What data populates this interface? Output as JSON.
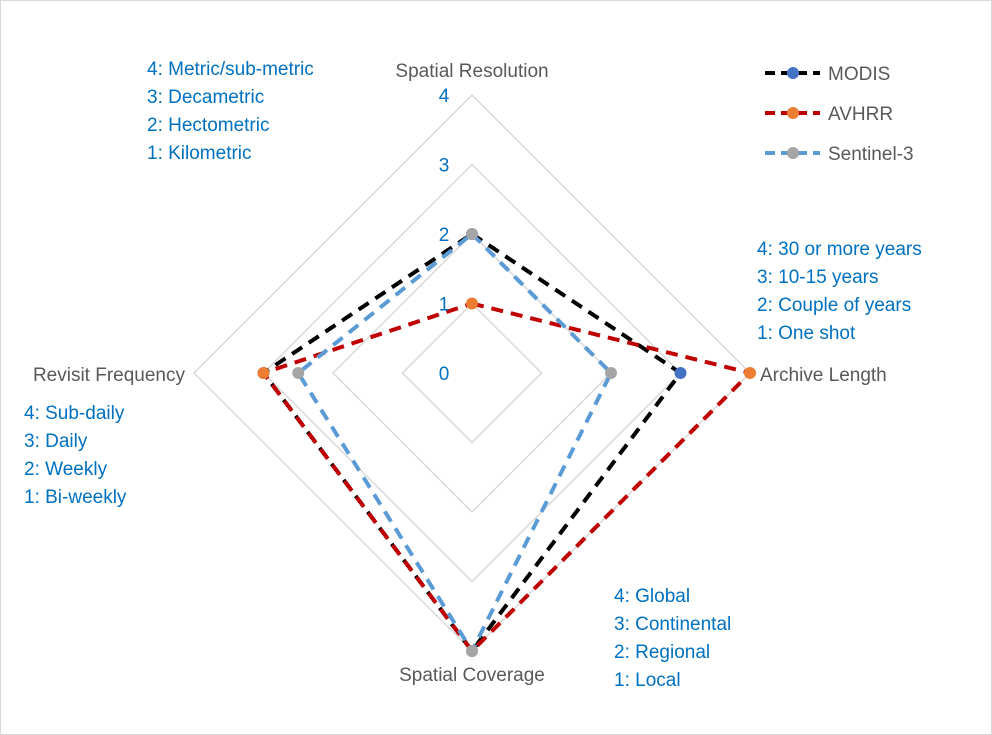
{
  "chart_data": {
    "type": "radar",
    "axes": [
      "Spatial Resolution",
      "Archive Length",
      "Spatial Coverage",
      "Revisit Frequency"
    ],
    "rlim": [
      0,
      4
    ],
    "ticks": [
      "0",
      "1",
      "2",
      "3",
      "4"
    ],
    "grid": true,
    "legend_position": "top-right",
    "series": [
      {
        "name": "MODIS",
        "values": [
          2,
          3,
          4,
          3
        ],
        "line_color": "#000000",
        "marker_color": "#4472c4",
        "dash": "dashed"
      },
      {
        "name": "AVHRR",
        "values": [
          1,
          4,
          4,
          3
        ],
        "line_color": "#c00000",
        "marker_color": "#ed7d31",
        "dash": "dashed"
      },
      {
        "name": "Sentinel-3",
        "values": [
          2,
          2,
          4,
          2.5
        ],
        "line_color": "#5b9bd5",
        "marker_color": "#a5a5a5",
        "dash": "dashed"
      }
    ],
    "annotations": {
      "spatial_resolution": [
        "4: Metric/sub-metric",
        "3: Decametric",
        "2: Hectometric",
        "1: Kilometric"
      ],
      "archive_length": [
        "4: 30 or more years",
        "3: 10-15 years",
        "2: Couple of years",
        "1: One shot"
      ],
      "revisit_frequency": [
        "4: Sub-daily",
        "3: Daily",
        "2: Weekly",
        "1: Bi-weekly"
      ],
      "spatial_coverage": [
        "4: Global",
        "3: Continental",
        "2: Regional",
        "1: Local"
      ]
    },
    "colors": {
      "grid": "#d9d9d9",
      "axis_text": "#595959",
      "annotation_text": "#0070c0",
      "tick_text": "#0070c0"
    }
  }
}
